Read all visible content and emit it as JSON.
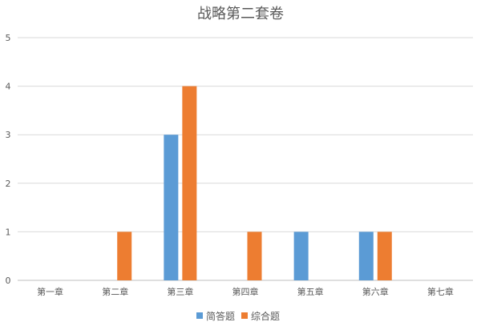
{
  "chart_data": {
    "type": "bar",
    "title": "战略第二套卷",
    "categories": [
      "第一章",
      "第二章",
      "第三章",
      "第四章",
      "第五章",
      "第六章",
      "第七章"
    ],
    "series": [
      {
        "name": "简答题",
        "color": "#5B9BD5",
        "values": [
          0,
          0,
          3,
          0,
          1,
          1,
          0
        ]
      },
      {
        "name": "综合题",
        "color": "#ED7D31",
        "values": [
          0,
          1,
          4,
          1,
          0,
          1,
          0
        ]
      }
    ],
    "yticks": [
      "0",
      "1",
      "2",
      "3",
      "4",
      "5"
    ],
    "ylim": [
      0,
      5
    ],
    "grid": true,
    "legend_position": "bottom"
  }
}
